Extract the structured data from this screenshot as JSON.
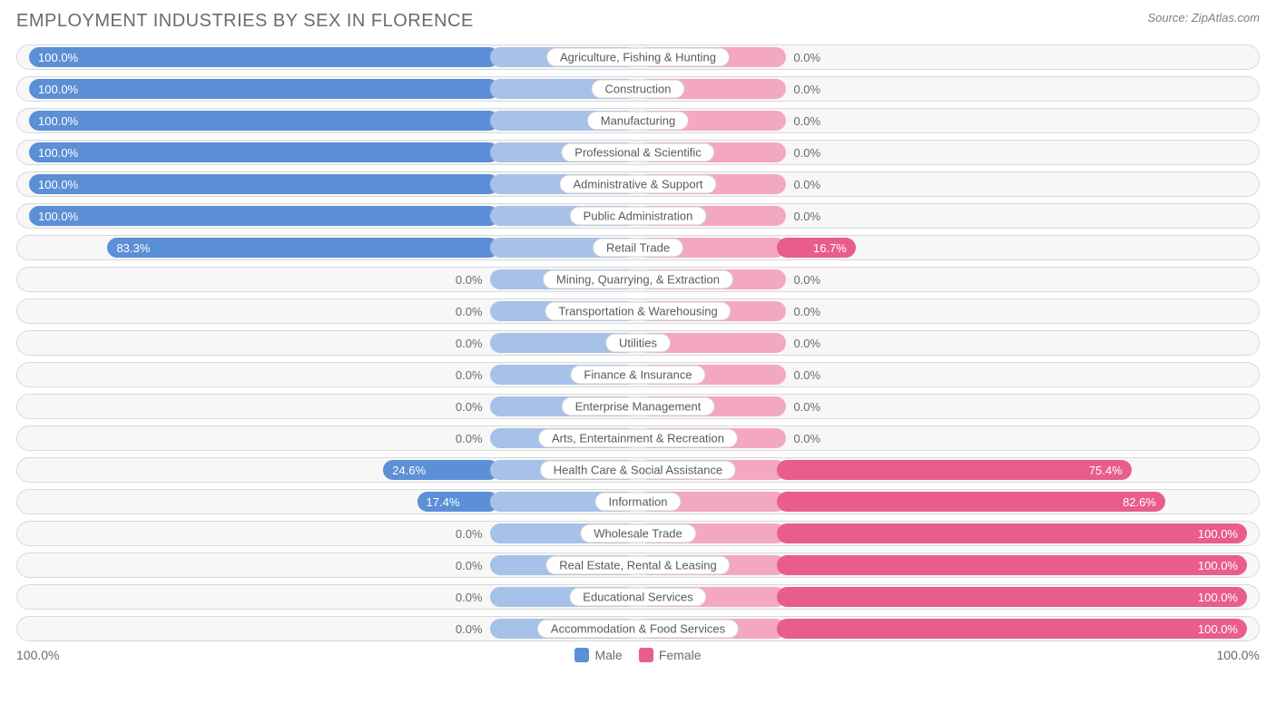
{
  "title": "EMPLOYMENT INDUSTRIES BY SEX IN FLORENCE",
  "source": "Source: ZipAtlas.com",
  "colors": {
    "male_strong": "#5b8fd6",
    "male_soft": "#a7c1e8",
    "female_strong": "#e85d8b",
    "female_soft": "#f4a8c0",
    "row_bg": "#f7f7f7",
    "row_border": "#d9d9d9",
    "text_muted": "#6b6b6b",
    "pill_bg": "#ffffff",
    "pill_border": "#d0d0d0"
  },
  "axis": {
    "left_label": "100.0%",
    "right_label": "100.0%",
    "legend_male": "Male",
    "legend_female": "Female"
  },
  "soft_bar_pct": 12,
  "rows": [
    {
      "label": "Agriculture, Fishing & Hunting",
      "male": 100.0,
      "female": 0.0
    },
    {
      "label": "Construction",
      "male": 100.0,
      "female": 0.0
    },
    {
      "label": "Manufacturing",
      "male": 100.0,
      "female": 0.0
    },
    {
      "label": "Professional & Scientific",
      "male": 100.0,
      "female": 0.0
    },
    {
      "label": "Administrative & Support",
      "male": 100.0,
      "female": 0.0
    },
    {
      "label": "Public Administration",
      "male": 100.0,
      "female": 0.0
    },
    {
      "label": "Retail Trade",
      "male": 83.3,
      "female": 16.7
    },
    {
      "label": "Mining, Quarrying, & Extraction",
      "male": 0.0,
      "female": 0.0
    },
    {
      "label": "Transportation & Warehousing",
      "male": 0.0,
      "female": 0.0
    },
    {
      "label": "Utilities",
      "male": 0.0,
      "female": 0.0
    },
    {
      "label": "Finance & Insurance",
      "male": 0.0,
      "female": 0.0
    },
    {
      "label": "Enterprise Management",
      "male": 0.0,
      "female": 0.0
    },
    {
      "label": "Arts, Entertainment & Recreation",
      "male": 0.0,
      "female": 0.0
    },
    {
      "label": "Health Care & Social Assistance",
      "male": 24.6,
      "female": 75.4
    },
    {
      "label": "Information",
      "male": 17.4,
      "female": 82.6
    },
    {
      "label": "Wholesale Trade",
      "male": 0.0,
      "female": 100.0
    },
    {
      "label": "Real Estate, Rental & Leasing",
      "male": 0.0,
      "female": 100.0
    },
    {
      "label": "Educational Services",
      "male": 0.0,
      "female": 100.0
    },
    {
      "label": "Accommodation & Food Services",
      "male": 0.0,
      "female": 100.0
    }
  ]
}
